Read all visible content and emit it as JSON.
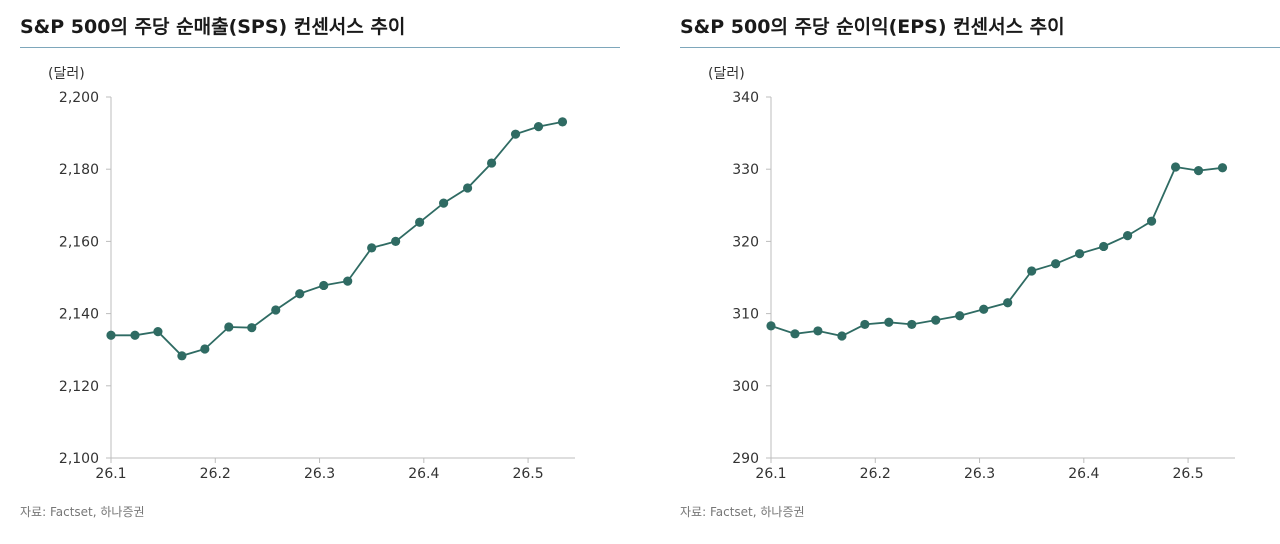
{
  "chart_data": [
    {
      "type": "line",
      "title": "S&P 500의 주당 순매출(SPS) 컨센서스 추이",
      "unit_label": "(달러)",
      "source": "자료: Factset, 하나증권",
      "x_tick_labels": [
        "26.1",
        "26.2",
        "26.3",
        "26.4",
        "26.5"
      ],
      "y_tick_labels": [
        "2,100",
        "2,120",
        "2,140",
        "2,160",
        "2,180",
        "2,200"
      ],
      "ylim": [
        2100,
        2200
      ],
      "xlim": [
        26.1,
        26.545
      ],
      "grid": false,
      "legend": "none",
      "color": "#2f6b63",
      "series": [
        {
          "x": [
            26.1,
            26.123,
            26.145,
            26.168,
            26.19,
            26.213,
            26.235,
            26.258,
            26.281,
            26.304,
            26.327,
            26.35,
            26.373,
            26.396,
            26.419,
            26.442,
            26.465,
            26.488,
            26.51,
            26.533
          ],
          "values": [
            2134,
            2134,
            2135,
            2128.3,
            2130.2,
            2136.3,
            2136.1,
            2141,
            2145.5,
            2147.8,
            2149,
            2158.2,
            2160,
            2165.3,
            2170.6,
            2174.8,
            2181.7,
            2189.7,
            2191.8,
            2193.1
          ]
        }
      ]
    },
    {
      "type": "line",
      "title": "S&P 500의 주당 순이익(EPS) 컨센서스 추이",
      "unit_label": "(달러)",
      "source": "자료: Factset, 하나증권",
      "x_tick_labels": [
        "26.1",
        "26.2",
        "26.3",
        "26.4",
        "26.5"
      ],
      "y_tick_labels": [
        "290",
        "300",
        "310",
        "320",
        "330",
        "340"
      ],
      "ylim": [
        290,
        340
      ],
      "xlim": [
        26.1,
        26.545
      ],
      "grid": false,
      "legend": "none",
      "color": "#2f6b63",
      "series": [
        {
          "x": [
            26.1,
            26.123,
            26.145,
            26.168,
            26.19,
            26.213,
            26.235,
            26.258,
            26.281,
            26.304,
            26.327,
            26.35,
            26.373,
            26.396,
            26.419,
            26.442,
            26.465,
            26.488,
            26.51,
            26.533
          ],
          "values": [
            308.3,
            307.2,
            307.6,
            306.9,
            308.5,
            308.8,
            308.5,
            309.1,
            309.7,
            310.6,
            311.5,
            315.9,
            316.9,
            318.3,
            319.3,
            320.8,
            322.8,
            330.3,
            329.8,
            330.2
          ]
        }
      ]
    }
  ]
}
